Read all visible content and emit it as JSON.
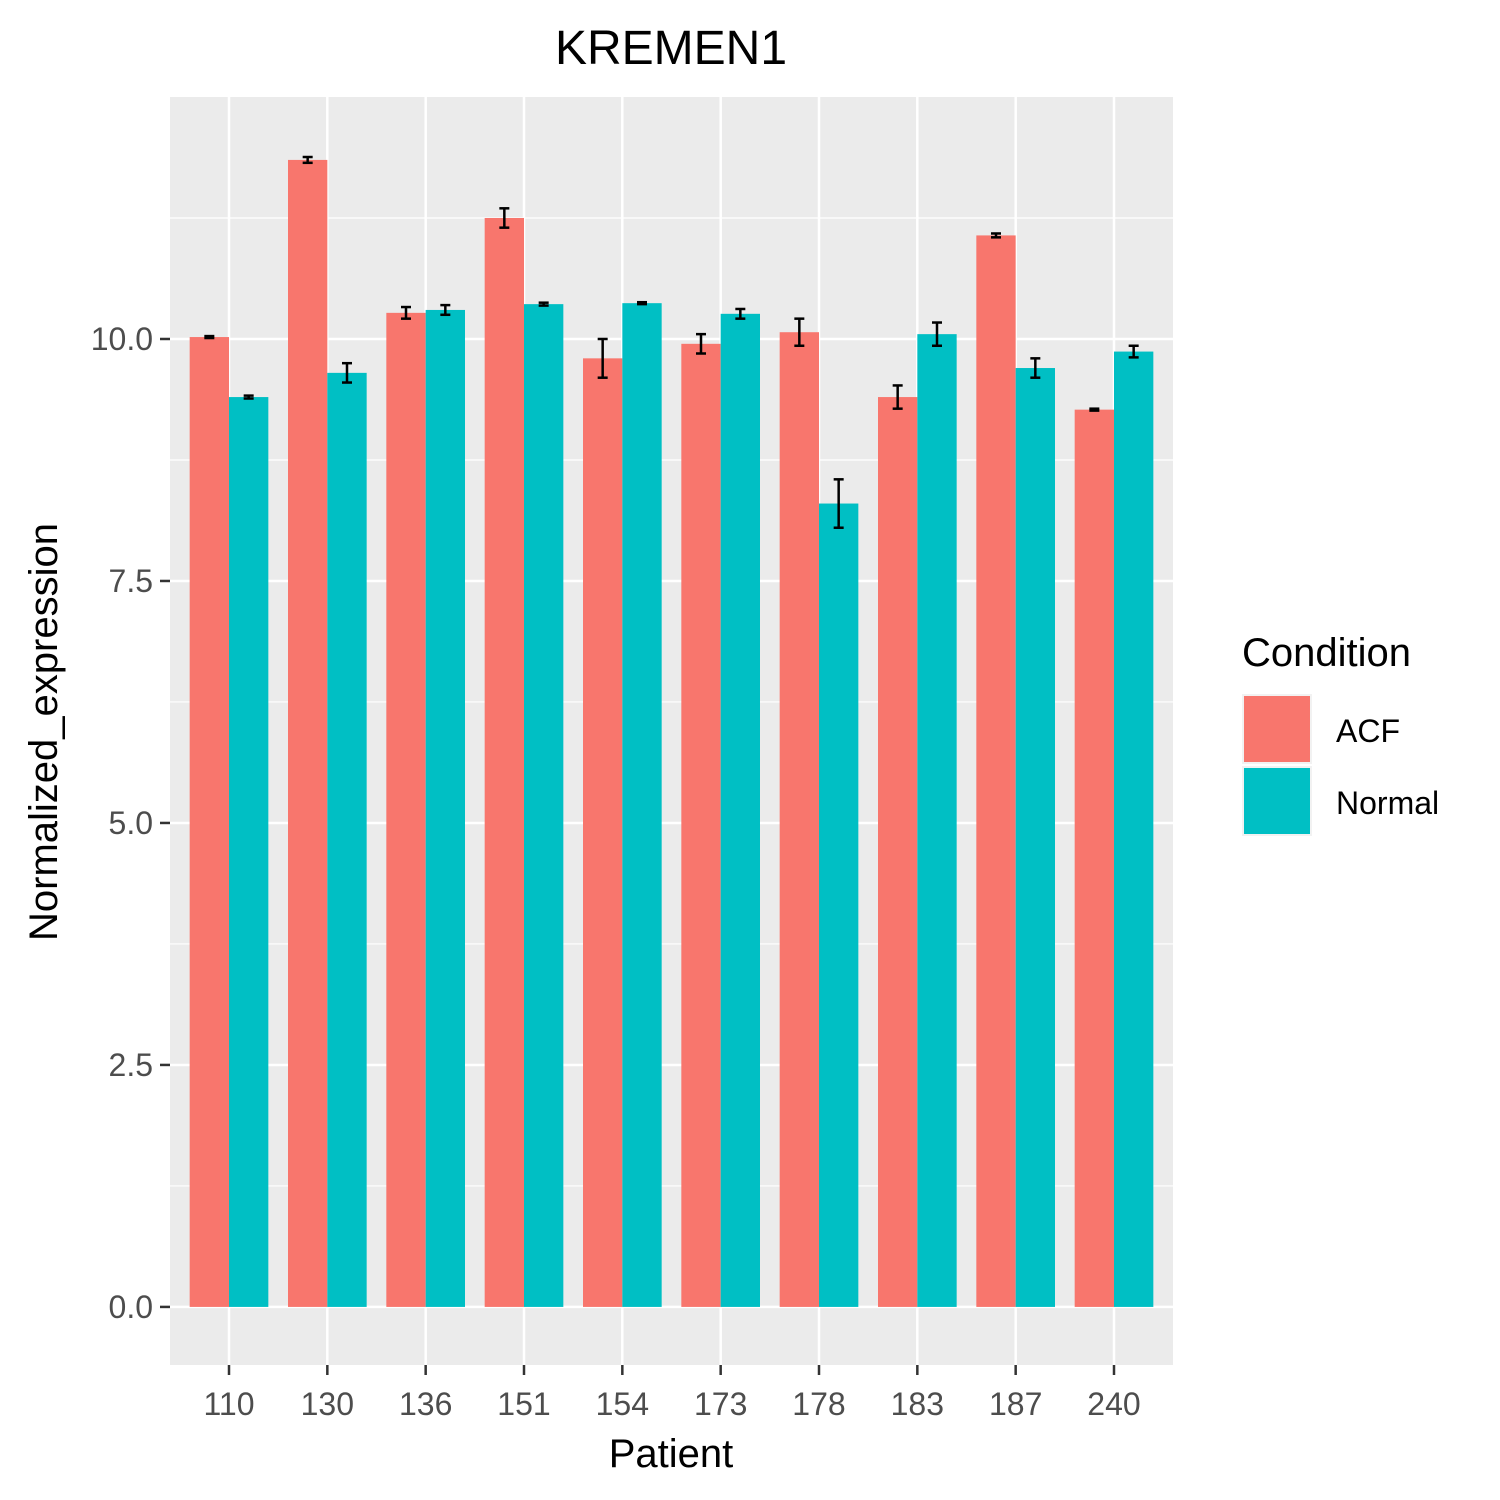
{
  "chart_data": {
    "type": "bar",
    "title": "KREMEN1",
    "xlabel": "Patient",
    "ylabel": "Normalized_expression",
    "categories": [
      "110",
      "130",
      "136",
      "151",
      "154",
      "173",
      "178",
      "183",
      "187",
      "240"
    ],
    "series": [
      {
        "name": "ACF",
        "color": "#F8766D",
        "values": [
          10.02,
          11.85,
          10.27,
          11.25,
          9.8,
          9.95,
          10.07,
          9.4,
          11.07,
          9.27
        ],
        "errors": [
          0.01,
          0.03,
          0.06,
          0.1,
          0.2,
          0.1,
          0.14,
          0.12,
          0.02,
          0.01
        ]
      },
      {
        "name": "Normal",
        "color": "#00BFC4",
        "values": [
          9.4,
          9.65,
          10.3,
          10.36,
          10.37,
          10.26,
          8.3,
          10.05,
          9.7,
          9.87
        ],
        "errors": [
          0.015,
          0.1,
          0.05,
          0.015,
          0.01,
          0.05,
          0.25,
          0.12,
          0.1,
          0.06
        ]
      }
    ],
    "yticks": [
      0.0,
      2.5,
      5.0,
      7.5,
      10.0
    ],
    "ytick_labels": [
      "0.0",
      "2.5",
      "5.0",
      "7.5",
      "10.0"
    ],
    "ylim": [
      -0.6,
      12.5
    ],
    "grid": true,
    "legend": {
      "title": "Condition",
      "position": "right"
    },
    "panel_background": "#EBEBEB"
  }
}
